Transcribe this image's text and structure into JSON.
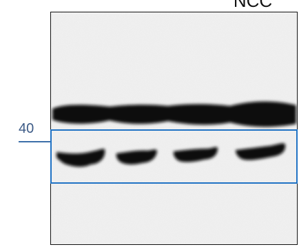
{
  "header": {
    "title_partial": "NCC"
  },
  "marker": {
    "label": "40",
    "color": "#3c6ea8"
  },
  "highlight": {
    "color": "#1f72c4"
  },
  "blot": {
    "lanes": 4,
    "upper_band_intensity": 0.95,
    "lower_band_intensity": 0.85,
    "background": "#f3f3f3"
  }
}
